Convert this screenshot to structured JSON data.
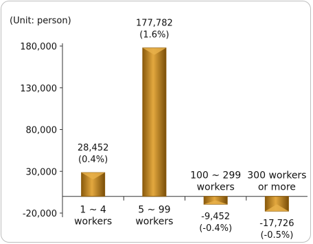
{
  "chart_data": {
    "type": "bar",
    "unit_note": "(Unit: person)",
    "categories": [
      [
        "1 ~ 4",
        "workers"
      ],
      [
        "5 ~ 99",
        "workers"
      ],
      [
        "100 ~ 299",
        "workers"
      ],
      [
        "300 workers",
        "or more"
      ]
    ],
    "values": [
      28452,
      177782,
      -9452,
      -17726
    ],
    "value_labels": [
      "28,452",
      "177,782",
      "-9,452",
      "-17,726"
    ],
    "pct_labels": [
      "(0.4%)",
      "(1.6%)",
      "(-0.4%)",
      "(-0.5%)"
    ],
    "yticks": [
      -20000,
      30000,
      80000,
      130000,
      180000
    ],
    "ytick_labels": [
      "-20,000",
      "30,000",
      "80,000",
      "130,000",
      "180,000"
    ],
    "ylim": [
      -20000,
      180000
    ],
    "grid": false,
    "colors": {
      "bar_light": "#e8b04a",
      "bar": "#c98a1f",
      "bar_dark": "#8a5a0c",
      "axis": "#333333"
    }
  }
}
